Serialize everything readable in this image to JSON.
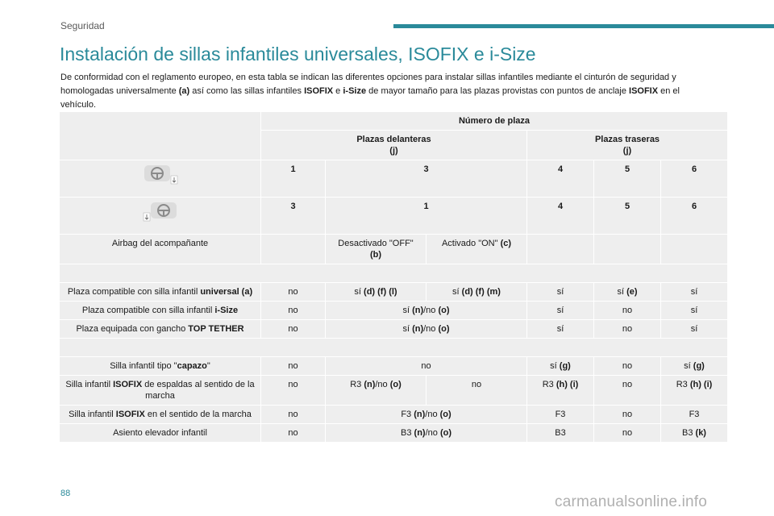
{
  "header": {
    "section": "Seguridad"
  },
  "page": {
    "title": "Instalación de sillas infantiles universales, ISOFIX e i-Size",
    "intro": [
      {
        "t": "De conformidad con el reglamento europeo, en esta tabla se indican las diferentes opciones para instalar sillas infantiles mediante el cinturón de seguridad y homologadas universalmente ",
        "b": false
      },
      {
        "t": "(a)",
        "b": true
      },
      {
        "t": " así como las sillas infantiles ",
        "b": false
      },
      {
        "t": "ISOFIX",
        "b": true
      },
      {
        "t": " e ",
        "b": false
      },
      {
        "t": "i-Size",
        "b": true
      },
      {
        "t": " de mayor tamaño para las plazas provistas con puntos de anclaje ",
        "b": false
      },
      {
        "t": "ISOFIX",
        "b": true
      },
      {
        "t": " en el vehículo.",
        "b": false
      }
    ],
    "page_number": "88",
    "watermark": "carmanualsonline.info"
  },
  "icons": {
    "seat_icon_1": "steering-wheel-left-icon",
    "seat_icon_2": "steering-wheel-right-icon"
  },
  "table": {
    "header_number": "Número de plaza",
    "front_label": "Plazas delanteras",
    "front_note": "(j)",
    "rear_label": "Plazas traseras",
    "rear_note": "(j)",
    "lhd_row": [
      "1",
      "3",
      "4",
      "5",
      "6"
    ],
    "rhd_row": [
      "3",
      "1",
      "4",
      "5",
      "6"
    ],
    "airbag_label": "Airbag del acompañante",
    "airbag_off_a": "Desactivado \"OFF\"",
    "airbag_off_b": "(b)",
    "airbag_on_a": "Activado \"ON\" ",
    "airbag_on_b": "(c)",
    "rows": [
      {
        "label_parts": [
          {
            "t": "Plaza compatible con silla infantil ",
            "b": false
          },
          {
            "t": "universal (a)",
            "b": true
          }
        ],
        "cells": [
          [
            {
              "t": "no",
              "b": false
            }
          ],
          [
            {
              "t": "sí ",
              "b": false
            },
            {
              "t": "(d) (f) (l)",
              "b": true
            }
          ],
          [
            {
              "t": "sí ",
              "b": false
            },
            {
              "t": "(d) (f) (m)",
              "b": true
            }
          ],
          [
            {
              "t": "sí",
              "b": false
            }
          ],
          [
            {
              "t": "sí ",
              "b": false
            },
            {
              "t": "(e)",
              "b": true
            }
          ],
          [
            {
              "t": "sí",
              "b": false
            }
          ]
        ],
        "span": false
      },
      {
        "label_parts": [
          {
            "t": "Plaza compatible con silla infantil ",
            "b": false
          },
          {
            "t": "i-Size",
            "b": true
          }
        ],
        "cells": [
          [
            {
              "t": "no",
              "b": false
            }
          ],
          [
            {
              "t": "sí ",
              "b": false
            },
            {
              "t": "(n)",
              "b": true
            },
            {
              "t": "/no ",
              "b": false
            },
            {
              "t": "(o)",
              "b": true
            }
          ],
          [
            {
              "t": "sí",
              "b": false
            }
          ],
          [
            {
              "t": "no",
              "b": false
            }
          ],
          [
            {
              "t": "sí",
              "b": false
            }
          ]
        ],
        "span": true
      },
      {
        "label_parts": [
          {
            "t": "Plaza equipada con gancho ",
            "b": false
          },
          {
            "t": "TOP TETHER",
            "b": true
          }
        ],
        "cells": [
          [
            {
              "t": "no",
              "b": false
            }
          ],
          [
            {
              "t": "sí ",
              "b": false
            },
            {
              "t": "(n)",
              "b": true
            },
            {
              "t": "/no ",
              "b": false
            },
            {
              "t": "(o)",
              "b": true
            }
          ],
          [
            {
              "t": "sí",
              "b": false
            }
          ],
          [
            {
              "t": "no",
              "b": false
            }
          ],
          [
            {
              "t": "sí",
              "b": false
            }
          ]
        ],
        "span": true
      }
    ],
    "rows2": [
      {
        "label_parts": [
          {
            "t": "Silla infantil tipo \"",
            "b": false
          },
          {
            "t": "capazo",
            "b": true
          },
          {
            "t": "\"",
            "b": false
          }
        ],
        "cells": [
          [
            {
              "t": "no",
              "b": false
            }
          ],
          [
            {
              "t": "no",
              "b": false
            }
          ],
          [
            {
              "t": "sí ",
              "b": false
            },
            {
              "t": "(g)",
              "b": true
            }
          ],
          [
            {
              "t": "no",
              "b": false
            }
          ],
          [
            {
              "t": "sí ",
              "b": false
            },
            {
              "t": "(g)",
              "b": true
            }
          ]
        ],
        "span": true
      },
      {
        "label_parts": [
          {
            "t": "Silla infantil ",
            "b": false
          },
          {
            "t": "ISOFIX",
            "b": true
          },
          {
            "t": " de espaldas al sentido de la marcha",
            "b": false
          }
        ],
        "cells": [
          [
            {
              "t": "no",
              "b": false
            }
          ],
          [
            {
              "t": "R3 ",
              "b": false
            },
            {
              "t": "(n)",
              "b": true
            },
            {
              "t": "/no ",
              "b": false
            },
            {
              "t": "(o)",
              "b": true
            }
          ],
          [
            {
              "t": "no",
              "b": false
            }
          ],
          [
            {
              "t": "R3 ",
              "b": false
            },
            {
              "t": "(h) (i)",
              "b": true
            }
          ],
          [
            {
              "t": "no",
              "b": false
            }
          ],
          [
            {
              "t": "R3 ",
              "b": false
            },
            {
              "t": "(h) (i)",
              "b": true
            }
          ]
        ],
        "span": false
      },
      {
        "label_parts": [
          {
            "t": "Silla infantil ",
            "b": false
          },
          {
            "t": "ISOFIX",
            "b": true
          },
          {
            "t": " en el sentido de la marcha",
            "b": false
          }
        ],
        "cells": [
          [
            {
              "t": "no",
              "b": false
            }
          ],
          [
            {
              "t": "F3 ",
              "b": false
            },
            {
              "t": "(n)",
              "b": true
            },
            {
              "t": "/no ",
              "b": false
            },
            {
              "t": "(o)",
              "b": true
            }
          ],
          [
            {
              "t": "F3",
              "b": false
            }
          ],
          [
            {
              "t": "no",
              "b": false
            }
          ],
          [
            {
              "t": "F3",
              "b": false
            }
          ]
        ],
        "span": true
      },
      {
        "label_parts": [
          {
            "t": "Asiento elevador infantil",
            "b": false
          }
        ],
        "cells": [
          [
            {
              "t": "no",
              "b": false
            }
          ],
          [
            {
              "t": "B3 ",
              "b": false
            },
            {
              "t": "(n)",
              "b": true
            },
            {
              "t": "/no ",
              "b": false
            },
            {
              "t": "(o)",
              "b": true
            }
          ],
          [
            {
              "t": "B3",
              "b": false
            }
          ],
          [
            {
              "t": "no",
              "b": false
            }
          ],
          [
            {
              "t": "B3 ",
              "b": false
            },
            {
              "t": "(k)",
              "b": true
            }
          ]
        ],
        "span": true
      }
    ]
  },
  "colors": {
    "accent": "#2a8a9a",
    "cell_bg": "#eeeeee"
  }
}
